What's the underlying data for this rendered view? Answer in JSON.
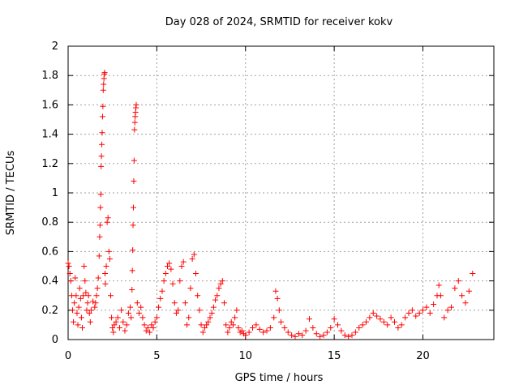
{
  "chart_data": {
    "type": "scatter",
    "title": "Day 028 of 2024, SRMTID for receiver kokv",
    "xlabel": "GPS time / hours",
    "ylabel": "SRMTID / TECUs",
    "xlim": [
      0,
      24
    ],
    "ylim": [
      0,
      2
    ],
    "x_ticks": [
      0,
      5,
      10,
      15,
      20
    ],
    "x_tick_labels": [
      "0",
      "5",
      "10",
      "15",
      "20"
    ],
    "y_ticks": [
      0,
      0.2,
      0.4,
      0.6,
      0.8,
      1,
      1.2,
      1.4,
      1.6,
      1.8,
      2
    ],
    "y_tick_labels": [
      "0",
      "0.2",
      "0.4",
      "0.6",
      "0.8",
      "1",
      "1.2",
      "1.4",
      "1.6",
      "1.8",
      "2"
    ],
    "grid": true,
    "marker": "+",
    "marker_color": "#ff0000",
    "series": [
      {
        "name": "SRMTID",
        "points": [
          [
            0.0,
            0.52
          ],
          [
            0.05,
            0.5
          ],
          [
            0.1,
            0.45
          ],
          [
            0.15,
            0.4
          ],
          [
            0.2,
            0.3
          ],
          [
            0.25,
            0.2
          ],
          [
            0.3,
            0.12
          ],
          [
            0.35,
            0.25
          ],
          [
            0.4,
            0.42
          ],
          [
            0.45,
            0.3
          ],
          [
            0.5,
            0.18
          ],
          [
            0.55,
            0.1
          ],
          [
            0.6,
            0.22
          ],
          [
            0.65,
            0.35
          ],
          [
            0.7,
            0.28
          ],
          [
            0.75,
            0.15
          ],
          [
            0.8,
            0.08
          ],
          [
            0.85,
            0.3
          ],
          [
            0.9,
            0.5
          ],
          [
            0.95,
            0.4
          ],
          [
            1.0,
            0.32
          ],
          [
            1.05,
            0.2
          ],
          [
            1.1,
            0.25
          ],
          [
            1.15,
            0.3
          ],
          [
            1.2,
            0.18
          ],
          [
            1.25,
            0.12
          ],
          [
            1.3,
            0.2
          ],
          [
            1.4,
            0.26
          ],
          [
            1.5,
            0.22
          ],
          [
            1.55,
            0.25
          ],
          [
            1.6,
            0.3
          ],
          [
            1.65,
            0.35
          ],
          [
            1.7,
            0.42
          ],
          [
            1.75,
            0.57
          ],
          [
            1.78,
            0.7
          ],
          [
            1.8,
            0.78
          ],
          [
            1.82,
            0.9
          ],
          [
            1.84,
            0.99
          ],
          [
            1.86,
            1.18
          ],
          [
            1.88,
            1.25
          ],
          [
            1.9,
            1.33
          ],
          [
            1.92,
            1.41
          ],
          [
            1.94,
            1.52
          ],
          [
            1.96,
            1.59
          ],
          [
            1.98,
            1.7
          ],
          [
            2.0,
            1.74
          ],
          [
            2.02,
            1.78
          ],
          [
            2.04,
            1.81
          ],
          [
            2.06,
            1.82
          ],
          [
            2.08,
            0.45
          ],
          [
            2.1,
            0.38
          ],
          [
            2.15,
            0.5
          ],
          [
            2.2,
            0.8
          ],
          [
            2.25,
            0.83
          ],
          [
            2.3,
            0.6
          ],
          [
            2.35,
            0.55
          ],
          [
            2.4,
            0.3
          ],
          [
            2.45,
            0.15
          ],
          [
            2.5,
            0.08
          ],
          [
            2.55,
            0.05
          ],
          [
            2.6,
            0.1
          ],
          [
            2.7,
            0.12
          ],
          [
            2.8,
            0.15
          ],
          [
            2.9,
            0.08
          ],
          [
            3.0,
            0.2
          ],
          [
            3.1,
            0.12
          ],
          [
            3.2,
            0.06
          ],
          [
            3.3,
            0.1
          ],
          [
            3.4,
            0.18
          ],
          [
            3.5,
            0.22
          ],
          [
            3.55,
            0.15
          ],
          [
            3.6,
            0.34
          ],
          [
            3.62,
            0.47
          ],
          [
            3.64,
            0.61
          ],
          [
            3.66,
            0.78
          ],
          [
            3.68,
            0.9
          ],
          [
            3.7,
            1.08
          ],
          [
            3.72,
            1.22
          ],
          [
            3.74,
            1.43
          ],
          [
            3.76,
            1.48
          ],
          [
            3.78,
            1.52
          ],
          [
            3.8,
            1.55
          ],
          [
            3.82,
            1.58
          ],
          [
            3.84,
            1.6
          ],
          [
            3.9,
            0.25
          ],
          [
            4.0,
            0.18
          ],
          [
            4.1,
            0.22
          ],
          [
            4.2,
            0.15
          ],
          [
            4.3,
            0.1
          ],
          [
            4.4,
            0.06
          ],
          [
            4.5,
            0.08
          ],
          [
            4.6,
            0.05
          ],
          [
            4.7,
            0.1
          ],
          [
            4.8,
            0.08
          ],
          [
            4.9,
            0.12
          ],
          [
            5.0,
            0.15
          ],
          [
            5.1,
            0.22
          ],
          [
            5.2,
            0.28
          ],
          [
            5.3,
            0.33
          ],
          [
            5.4,
            0.4
          ],
          [
            5.5,
            0.45
          ],
          [
            5.6,
            0.5
          ],
          [
            5.7,
            0.52
          ],
          [
            5.8,
            0.48
          ],
          [
            5.9,
            0.38
          ],
          [
            6.0,
            0.25
          ],
          [
            6.1,
            0.18
          ],
          [
            6.2,
            0.2
          ],
          [
            6.3,
            0.4
          ],
          [
            6.4,
            0.5
          ],
          [
            6.5,
            0.53
          ],
          [
            6.6,
            0.25
          ],
          [
            6.7,
            0.1
          ],
          [
            6.8,
            0.15
          ],
          [
            6.9,
            0.35
          ],
          [
            7.0,
            0.55
          ],
          [
            7.1,
            0.58
          ],
          [
            7.2,
            0.45
          ],
          [
            7.3,
            0.3
          ],
          [
            7.4,
            0.2
          ],
          [
            7.5,
            0.1
          ],
          [
            7.6,
            0.05
          ],
          [
            7.7,
            0.08
          ],
          [
            7.8,
            0.1
          ],
          [
            7.9,
            0.12
          ],
          [
            8.0,
            0.15
          ],
          [
            8.1,
            0.18
          ],
          [
            8.2,
            0.22
          ],
          [
            8.3,
            0.27
          ],
          [
            8.4,
            0.3
          ],
          [
            8.5,
            0.35
          ],
          [
            8.6,
            0.38
          ],
          [
            8.7,
            0.4
          ],
          [
            8.8,
            0.25
          ],
          [
            8.9,
            0.1
          ],
          [
            9.0,
            0.05
          ],
          [
            9.1,
            0.08
          ],
          [
            9.2,
            0.12
          ],
          [
            9.3,
            0.1
          ],
          [
            9.4,
            0.15
          ],
          [
            9.5,
            0.2
          ],
          [
            9.6,
            0.08
          ],
          [
            9.7,
            0.05
          ],
          [
            9.8,
            0.06
          ],
          [
            9.9,
            0.04
          ],
          [
            10.0,
            0.03
          ],
          [
            10.2,
            0.05
          ],
          [
            10.4,
            0.08
          ],
          [
            10.6,
            0.1
          ],
          [
            10.8,
            0.07
          ],
          [
            11.0,
            0.05
          ],
          [
            11.2,
            0.06
          ],
          [
            11.4,
            0.08
          ],
          [
            11.6,
            0.15
          ],
          [
            11.7,
            0.33
          ],
          [
            11.8,
            0.28
          ],
          [
            11.9,
            0.2
          ],
          [
            12.0,
            0.12
          ],
          [
            12.2,
            0.08
          ],
          [
            12.4,
            0.05
          ],
          [
            12.6,
            0.03
          ],
          [
            12.8,
            0.02
          ],
          [
            13.0,
            0.04
          ],
          [
            13.2,
            0.03
          ],
          [
            13.4,
            0.06
          ],
          [
            13.6,
            0.14
          ],
          [
            13.8,
            0.08
          ],
          [
            14.0,
            0.04
          ],
          [
            14.2,
            0.02
          ],
          [
            14.4,
            0.03
          ],
          [
            14.6,
            0.05
          ],
          [
            14.8,
            0.08
          ],
          [
            15.0,
            0.14
          ],
          [
            15.2,
            0.1
          ],
          [
            15.4,
            0.06
          ],
          [
            15.6,
            0.03
          ],
          [
            15.8,
            0.02
          ],
          [
            16.0,
            0.03
          ],
          [
            16.2,
            0.05
          ],
          [
            16.4,
            0.08
          ],
          [
            16.6,
            0.1
          ],
          [
            16.8,
            0.12
          ],
          [
            17.0,
            0.15
          ],
          [
            17.2,
            0.18
          ],
          [
            17.4,
            0.16
          ],
          [
            17.6,
            0.14
          ],
          [
            17.8,
            0.12
          ],
          [
            18.0,
            0.1
          ],
          [
            18.2,
            0.15
          ],
          [
            18.4,
            0.12
          ],
          [
            18.6,
            0.08
          ],
          [
            18.8,
            0.1
          ],
          [
            19.0,
            0.15
          ],
          [
            19.2,
            0.18
          ],
          [
            19.4,
            0.2
          ],
          [
            19.6,
            0.16
          ],
          [
            19.8,
            0.18
          ],
          [
            20.0,
            0.2
          ],
          [
            20.2,
            0.22
          ],
          [
            20.4,
            0.18
          ],
          [
            20.6,
            0.24
          ],
          [
            20.8,
            0.3
          ],
          [
            20.9,
            0.37
          ],
          [
            21.0,
            0.3
          ],
          [
            21.2,
            0.15
          ],
          [
            21.4,
            0.2
          ],
          [
            21.6,
            0.22
          ],
          [
            21.8,
            0.35
          ],
          [
            22.0,
            0.4
          ],
          [
            22.2,
            0.3
          ],
          [
            22.4,
            0.25
          ],
          [
            22.6,
            0.33
          ],
          [
            22.8,
            0.45
          ]
        ]
      }
    ]
  }
}
